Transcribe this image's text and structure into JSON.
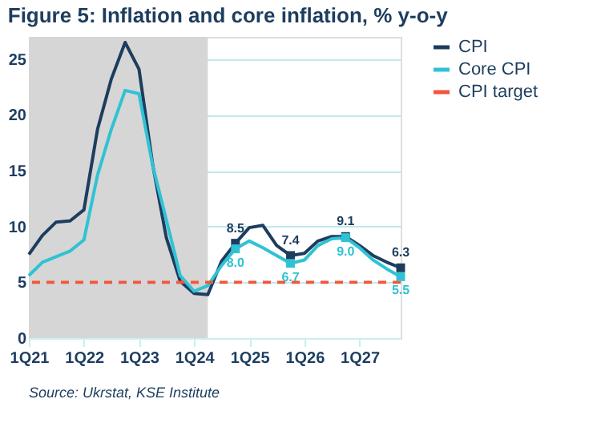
{
  "chart_data": {
    "type": "line",
    "title": "Figure 5: Inflation and core inflation, % y-o-y",
    "x": [
      "2021-01",
      "2021-04",
      "2021-07",
      "2021-10",
      "2022-01",
      "2022-04",
      "2022-07",
      "2022-10",
      "2023-01",
      "2023-04",
      "2023-07",
      "2023-10",
      "2024-01",
      "2024-04",
      "2024-07",
      "2024-10",
      "2025-01",
      "2025-04",
      "2025-07",
      "2025-10",
      "2026-01",
      "2026-04",
      "2026-07",
      "2026-10",
      "2027-01",
      "2027-04",
      "2027-07",
      "2027-10"
    ],
    "series": [
      {
        "name": "CPI",
        "color": "#1d3d5f",
        "values": [
          7.5,
          9.2,
          10.4,
          10.5,
          11.5,
          18.7,
          23.2,
          26.5,
          24.1,
          15.6,
          9.0,
          5.1,
          4.0,
          3.9,
          6.9,
          8.5,
          9.9,
          10.1,
          8.3,
          7.4,
          7.6,
          8.7,
          9.1,
          9.1,
          8.3,
          7.4,
          6.8,
          6.3
        ],
        "value_labels": [
          null,
          null,
          null,
          null,
          null,
          null,
          null,
          null,
          null,
          null,
          null,
          null,
          null,
          null,
          null,
          "8.5",
          null,
          null,
          null,
          "7.4",
          null,
          null,
          null,
          "9.1",
          null,
          null,
          null,
          "6.3"
        ]
      },
      {
        "name": "Core CPI",
        "color": "#30c2d4",
        "values": [
          5.6,
          6.8,
          7.3,
          7.8,
          8.8,
          14.6,
          18.7,
          22.2,
          21.9,
          15.5,
          10.6,
          5.6,
          4.2,
          4.7,
          6.5,
          8.0,
          8.7,
          8.1,
          7.4,
          6.7,
          7.0,
          8.3,
          8.9,
          9.0,
          8.1,
          7.0,
          6.2,
          5.5
        ],
        "value_labels": [
          null,
          null,
          null,
          null,
          null,
          null,
          null,
          null,
          null,
          null,
          null,
          null,
          null,
          null,
          null,
          "8.0",
          null,
          null,
          null,
          "6.7",
          null,
          null,
          null,
          "9.0",
          null,
          null,
          null,
          "5.5"
        ]
      }
    ],
    "ylim": [
      0,
      27
    ],
    "yticks": [
      0,
      5,
      10,
      15,
      20,
      25
    ],
    "xlim": [
      "2021-01",
      "2027-10"
    ],
    "xticks": [
      {
        "value": "2021-01",
        "label": "1Q21"
      },
      {
        "value": "2022-01",
        "label": "1Q22"
      },
      {
        "value": "2023-01",
        "label": "1Q23"
      },
      {
        "value": "2024-01",
        "label": "1Q24"
      },
      {
        "value": "2025-01",
        "label": "1Q25"
      },
      {
        "value": "2026-01",
        "label": "1Q26"
      },
      {
        "value": "2027-01",
        "label": "1Q27"
      }
    ],
    "ref_lines": [
      {
        "axis": "y",
        "value": 5,
        "label": "CPI target",
        "color": "#f4553a",
        "line_style": "dashed"
      }
    ],
    "bands": [
      {
        "axis": "x",
        "from": "2021-01",
        "to": "2024-04",
        "color": "#d6d6d6"
      }
    ],
    "grid": "y",
    "legend": "right",
    "annotations": [
      "Source: Ukrstat, KSE Institute"
    ]
  }
}
